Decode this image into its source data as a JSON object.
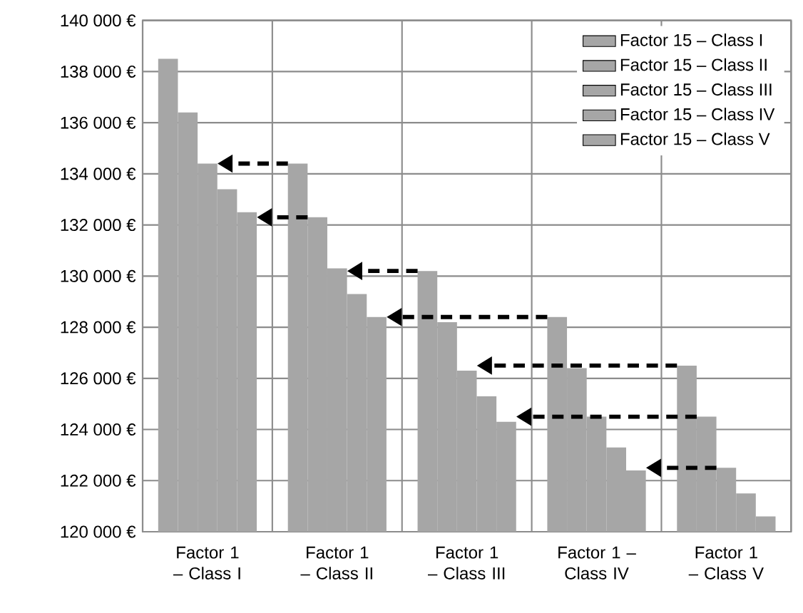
{
  "chart_data": {
    "type": "bar",
    "categories": [
      "Factor 1 – Class I",
      "Factor 1 – Class II",
      "Factor 1 – Class III",
      "Factor 1 – Class IV",
      "Factor 1 – Class V"
    ],
    "series": [
      {
        "name": "Factor 15 – Class I",
        "color": "#a6a6a6",
        "values": [
          138500,
          134400,
          130200,
          128400,
          126500
        ]
      },
      {
        "name": "Factor 15 – Class II",
        "color": "#a6a6a6",
        "values": [
          136400,
          132300,
          128200,
          126400,
          124500
        ]
      },
      {
        "name": "Factor 15 – Class III",
        "color": "#a6a6a6",
        "values": [
          134400,
          130300,
          126300,
          124500,
          122500
        ]
      },
      {
        "name": "Factor 15 – Class IV",
        "color": "#a6a6a6",
        "values": [
          133400,
          129300,
          125300,
          123300,
          121500
        ]
      },
      {
        "name": "Factor 15 – Class V",
        "color": "#a6a6a6",
        "values": [
          132500,
          128400,
          124300,
          122400,
          120600
        ]
      }
    ],
    "ylim": [
      120000,
      140000
    ],
    "yticks": [
      {
        "value": 120000,
        "label": "120 000 €"
      },
      {
        "value": 122000,
        "label": "122 000 €"
      },
      {
        "value": 124000,
        "label": "124 000 €"
      },
      {
        "value": 126000,
        "label": "126 000 €"
      },
      {
        "value": 128000,
        "label": "128 000 €"
      },
      {
        "value": 130000,
        "label": "130 000 €"
      },
      {
        "value": 132000,
        "label": "132 000 €"
      },
      {
        "value": 134000,
        "label": "134 000 €"
      },
      {
        "value": 136000,
        "label": "136 000 €"
      },
      {
        "value": 138000,
        "label": "138 000 €"
      },
      {
        "value": 140000,
        "label": "140 000 €"
      }
    ],
    "grid": true,
    "legend": "top right"
  }
}
